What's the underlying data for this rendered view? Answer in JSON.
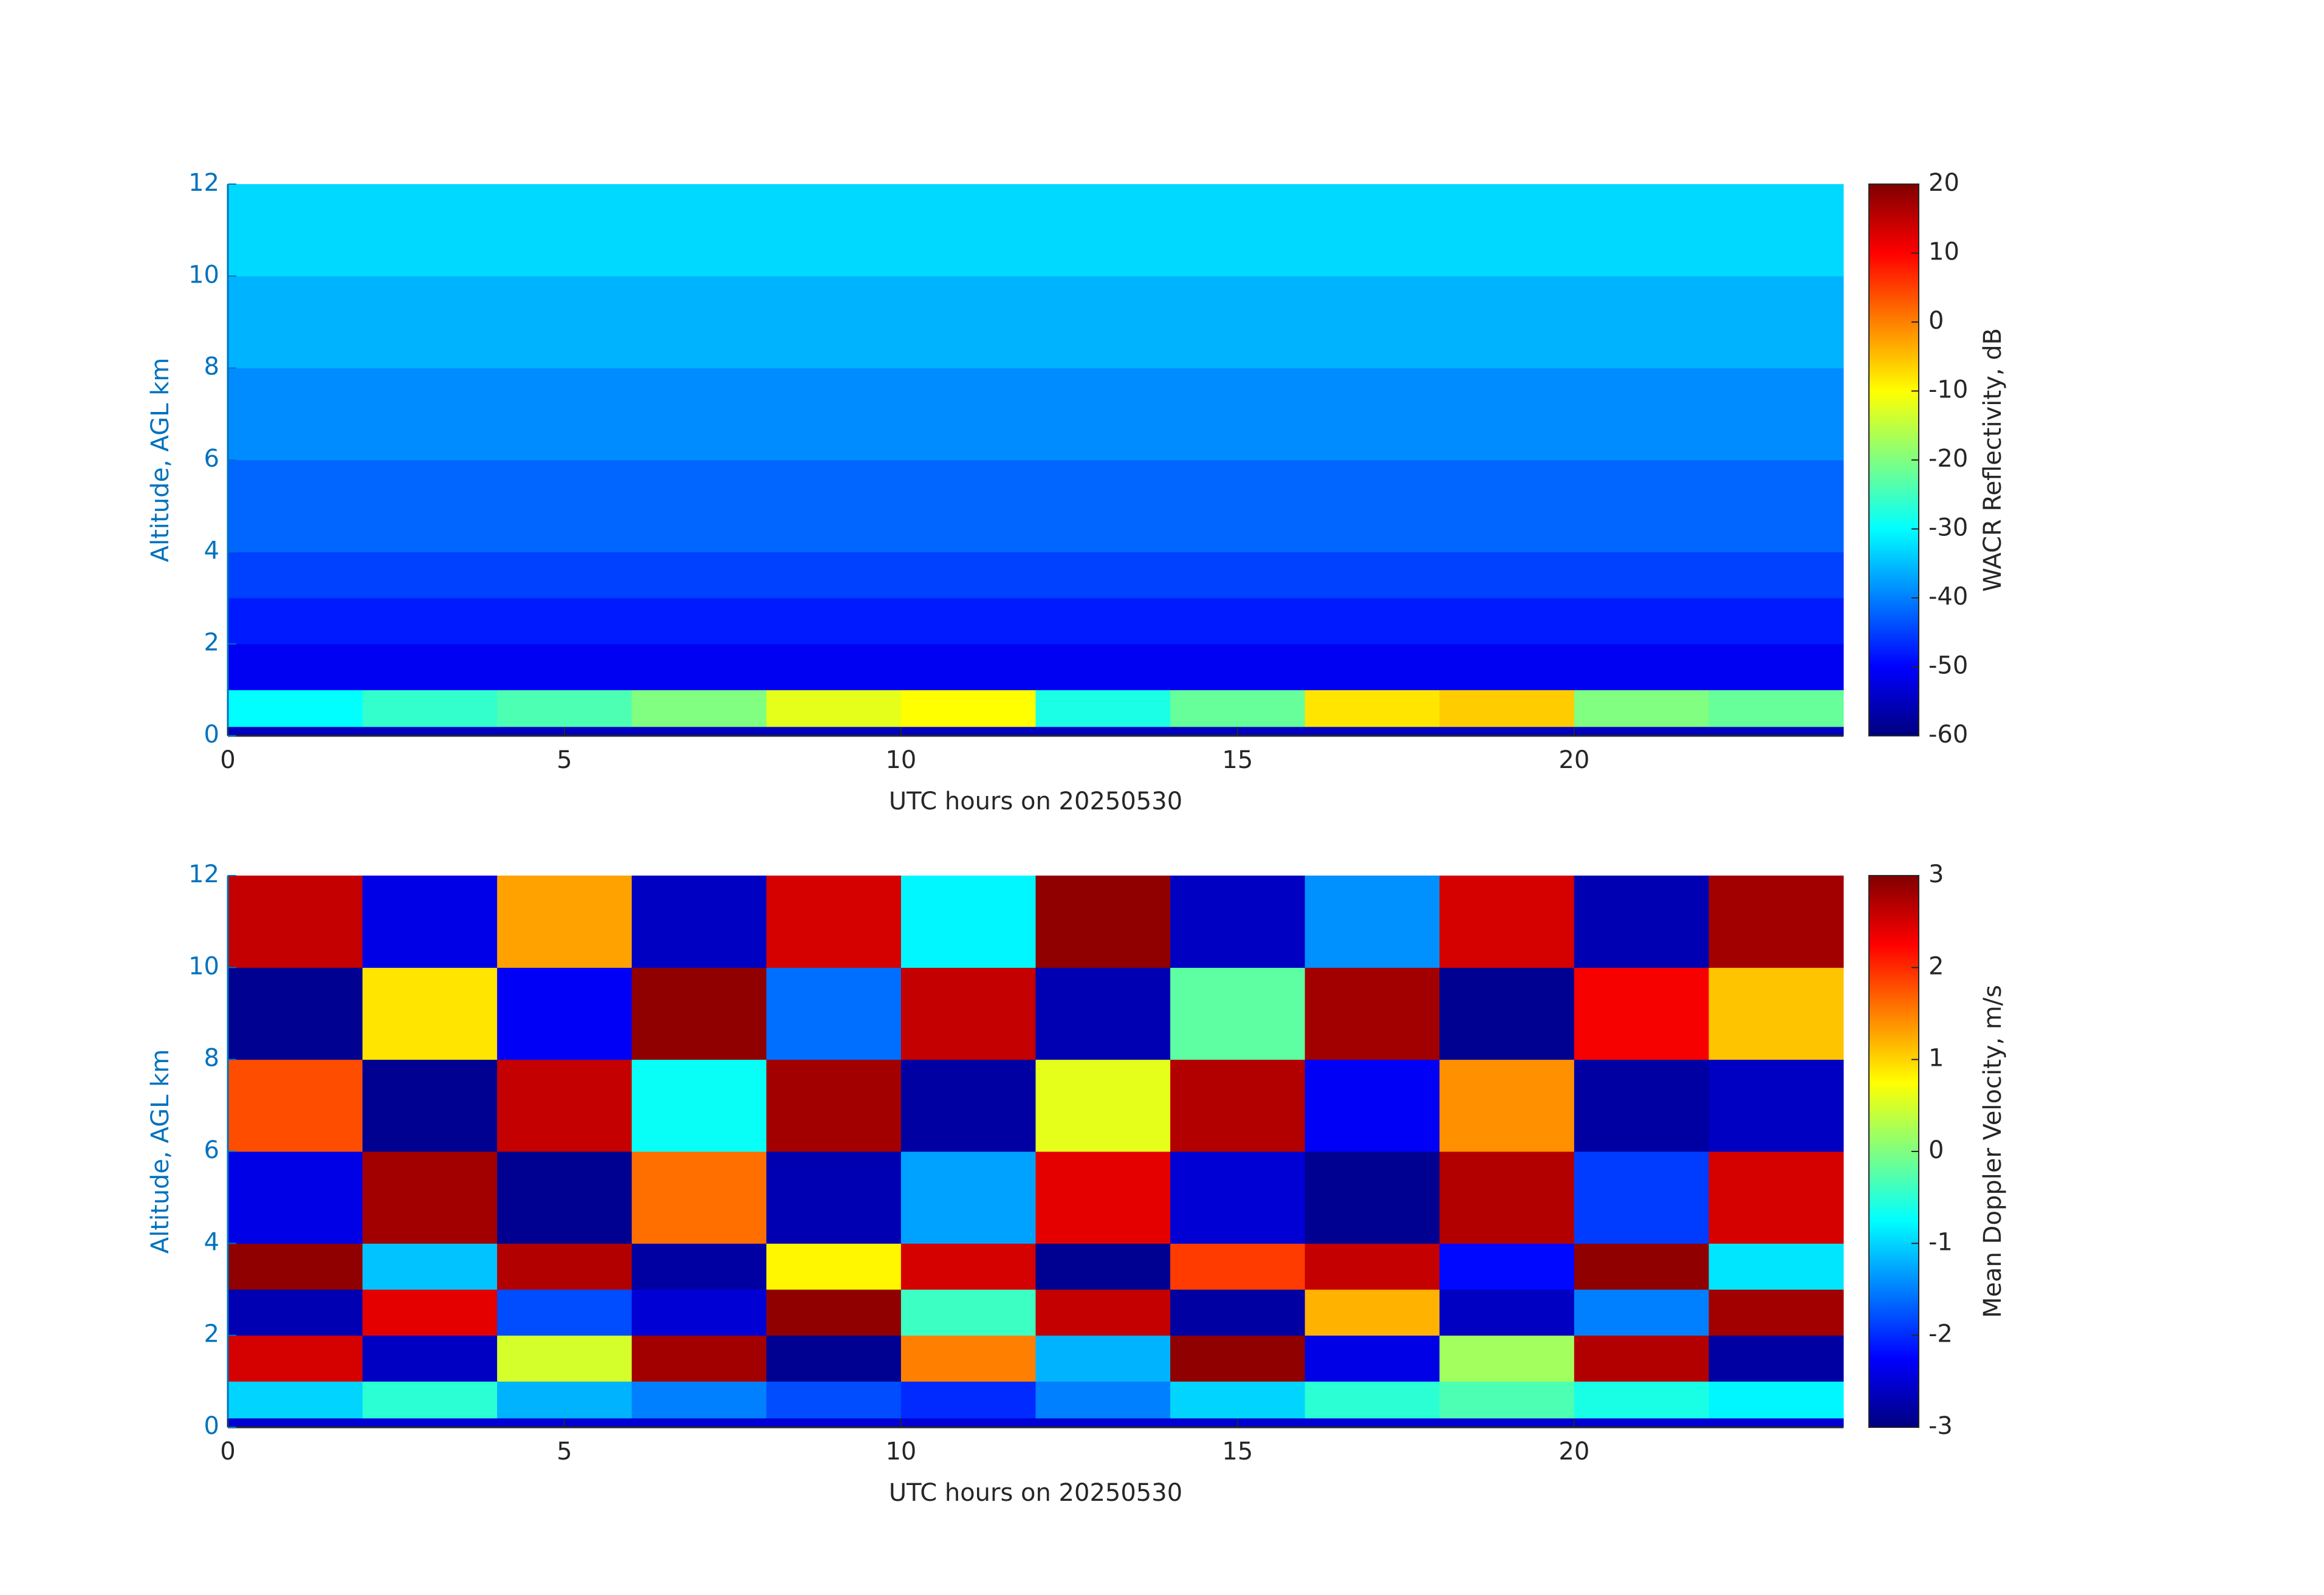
{
  "chart_data": [
    {
      "type": "heatmap",
      "colormap": "jet",
      "xlabel": "UTC hours on 20250530",
      "ylabel": "Altitude, AGL km",
      "colorbar_label": "WACR Reflectivity, dB",
      "x_edges": [
        0,
        2,
        4,
        6,
        8,
        10,
        12,
        14,
        16,
        18,
        20,
        22,
        24
      ],
      "y_edges": [
        0,
        0.2,
        1,
        2,
        3,
        4,
        6,
        8,
        10,
        12
      ],
      "z": [
        [
          -55,
          -55,
          -55,
          -55,
          -55,
          -55,
          -55,
          -55,
          -55,
          -55,
          -55,
          -55
        ],
        [
          -30,
          -26,
          -24,
          -20,
          -12,
          -10,
          -28,
          -22,
          -8,
          -6,
          -20,
          -22
        ],
        [
          -51,
          -51,
          -51,
          -51,
          -51,
          -51,
          -51,
          -51,
          -51,
          -51,
          -51,
          -51
        ],
        [
          -48,
          -48,
          -48,
          -48,
          -48,
          -48,
          -48,
          -48,
          -48,
          -48,
          -48,
          -48
        ],
        [
          -45,
          -45,
          -45,
          -45,
          -45,
          -45,
          -45,
          -45,
          -45,
          -45,
          -45,
          -45
        ],
        [
          -42,
          -42,
          -42,
          -42,
          -42,
          -42,
          -42,
          -42,
          -42,
          -42,
          -42,
          -42
        ],
        [
          -39,
          -39,
          -39,
          -39,
          -39,
          -39,
          -39,
          -39,
          -39,
          -39,
          -39,
          -39
        ],
        [
          -36,
          -36,
          -36,
          -36,
          -36,
          -36,
          -36,
          -36,
          -36,
          -36,
          -36,
          -36
        ],
        [
          -33,
          -33,
          -33,
          -33,
          -33,
          -33,
          -33,
          -33,
          -33,
          -33,
          -33,
          -33
        ]
      ],
      "clim": [
        -60,
        20
      ],
      "cticks": [
        -60,
        -50,
        -40,
        -30,
        -20,
        -10,
        0,
        10,
        20
      ],
      "xlim": [
        0,
        24
      ],
      "xticks": [
        0,
        5,
        10,
        15,
        20
      ],
      "ylim": [
        0,
        12
      ],
      "yticks": [
        0,
        2,
        4,
        6,
        8,
        10,
        12
      ]
    },
    {
      "type": "heatmap",
      "colormap": "jet",
      "xlabel": "UTC hours on 20250530",
      "ylabel": "Altitude, AGL km",
      "colorbar_label": "Mean Doppler Velocity, m/s",
      "x_edges": [
        0,
        2,
        4,
        6,
        8,
        10,
        12,
        14,
        16,
        18,
        20,
        22,
        24
      ],
      "y_edges": [
        0,
        0.2,
        1,
        2,
        3,
        4,
        6,
        8,
        10,
        12
      ],
      "z": [
        [
          -2.5,
          -2.5,
          -2.5,
          -2.5,
          -2.5,
          -2.5,
          -2.5,
          -2.5,
          -2.5,
          -2.5,
          -2.5,
          -2.5
        ],
        [
          -1,
          -0.5,
          -1.2,
          -1.5,
          -1.8,
          -2,
          -1.5,
          -1,
          -0.5,
          -0.3,
          -0.6,
          -0.8
        ],
        [
          2.5,
          -2.6,
          0.5,
          2.8,
          -2.9,
          1.5,
          -1.2,
          2.9,
          -2.4,
          0.2,
          2.7,
          -2.8
        ],
        [
          -2.7,
          2.4,
          -1.8,
          -2.5,
          2.9,
          -0.4,
          2.6,
          -2.8,
          1.2,
          -2.6,
          -1.5,
          2.8
        ],
        [
          2.9,
          -1.1,
          2.7,
          -2.8,
          0.8,
          2.5,
          -2.9,
          1.9,
          2.6,
          -2.2,
          2.9,
          -0.9
        ],
        [
          -2.4,
          2.8,
          -2.9,
          1.6,
          -2.7,
          -1.3,
          2.4,
          -2.5,
          -2.9,
          2.7,
          -1.9,
          2.5
        ],
        [
          1.8,
          -2.9,
          2.6,
          -0.7,
          2.8,
          -2.8,
          0.6,
          2.7,
          -2.3,
          1.4,
          -2.8,
          -2.6
        ],
        [
          -2.9,
          0.9,
          -2.3,
          2.9,
          -1.6,
          2.6,
          -2.7,
          -0.2,
          2.8,
          -2.9,
          2.3,
          1.1
        ],
        [
          2.6,
          -2.4,
          1.3,
          -2.6,
          2.5,
          -0.8,
          2.9,
          -2.6,
          -1.4,
          2.5,
          -2.7,
          2.8
        ]
      ],
      "clim": [
        -3,
        3
      ],
      "cticks": [
        -3,
        -2,
        -1,
        0,
        1,
        2,
        3
      ],
      "xlim": [
        0,
        24
      ],
      "xticks": [
        0,
        5,
        10,
        15,
        20
      ],
      "ylim": [
        0,
        12
      ],
      "yticks": [
        0,
        2,
        4,
        6,
        8,
        10,
        12
      ]
    }
  ]
}
